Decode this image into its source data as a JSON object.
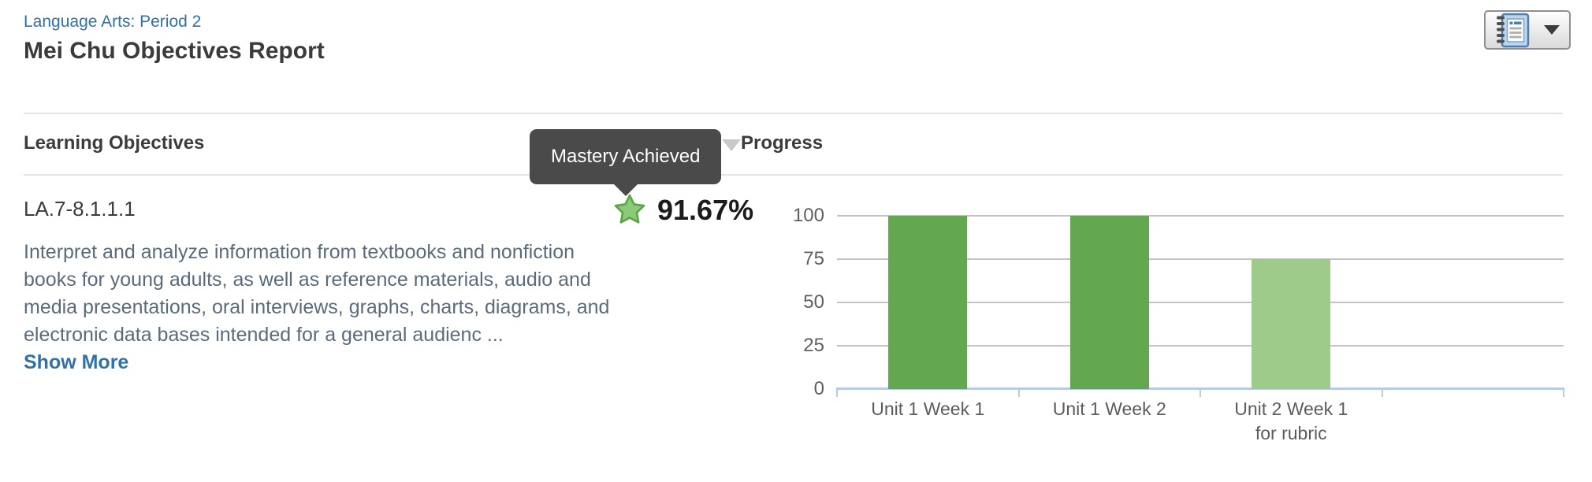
{
  "header": {
    "course_link": "Language Arts: Period 2",
    "title": "Mei Chu Objectives Report"
  },
  "toolbar": {
    "report_button_icon": "notebook-icon",
    "report_button_caret": "caret-down-icon"
  },
  "table": {
    "columns": {
      "objectives": "Learning Objectives",
      "progress": "Progress"
    },
    "sort_icon": "sort-caret-down-icon"
  },
  "tooltip": {
    "text": "Mastery Achieved"
  },
  "objective_row": {
    "code": "LA.7-8.1.1.1",
    "description": "Interpret and analyze information from textbooks and nonfiction books for young adults, as well as reference materials, audio and media presentations, oral interviews, graphs, charts, diagrams, and electronic data bases intended for a general audienc ...",
    "show_more_label": "Show More",
    "mastery": {
      "icon": "star-icon",
      "percent": "91.67%"
    }
  },
  "chart_data": {
    "type": "bar",
    "categories": [
      "Unit 1 Week 1",
      "Unit 1 Week 2",
      "Unit 2 Week 1 for rubric",
      ""
    ],
    "category_lines": [
      [
        "Unit 1 Week 1"
      ],
      [
        "Unit 1 Week 2"
      ],
      [
        "Unit 2 Week 1",
        "for rubric"
      ],
      []
    ],
    "values": [
      100,
      100,
      75,
      null
    ],
    "bar_colors": [
      "#63a84e",
      "#63a84e",
      "#9ecb89",
      null
    ],
    "yticks": [
      0,
      25,
      50,
      75,
      100
    ],
    "ylim": [
      0,
      100
    ],
    "grid": true,
    "legend": false,
    "title": "",
    "xlabel": "",
    "ylabel": ""
  },
  "colors": {
    "link_blue": "#3071a9",
    "heading_text": "#3b3b3b",
    "description_text": "#5a6b7c",
    "tooltip_bg": "#4a4a4a",
    "tooltip_text": "#ffffff",
    "bar_green": "#63a84e",
    "bar_light_green": "#9ecb89",
    "gridline": "#c4c4c4",
    "axis_blue": "#b7cce2",
    "star_fill": "#8cc979",
    "star_stroke": "#5aa647",
    "divider": "#e4e4e4"
  }
}
